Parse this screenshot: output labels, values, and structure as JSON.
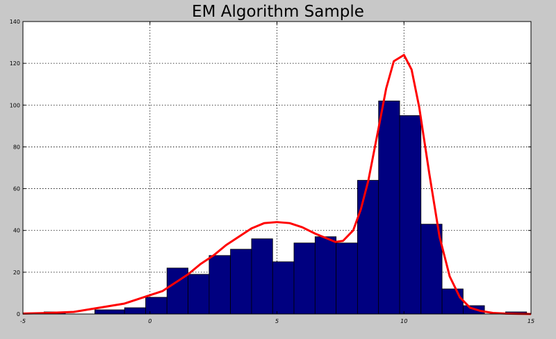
{
  "chart_data": {
    "type": "bar",
    "title": "EM Algorithm Sample",
    "xlabel": "",
    "ylabel": "",
    "xlim": [
      -5,
      15
    ],
    "ylim": [
      0,
      140
    ],
    "grid": true,
    "x_ticks": [
      "-5",
      "0",
      "5",
      "10",
      "15"
    ],
    "y_ticks": [
      "0",
      "20",
      "40",
      "60",
      "80",
      "100",
      "120",
      "140"
    ],
    "bar_color": "#000080",
    "curve_color": "#ff0000",
    "histogram": {
      "bin_width": 0.83,
      "bins": [
        {
          "x0": -4.17,
          "x1": -3.33,
          "count": 1
        },
        {
          "x0": -2.17,
          "x1": -1.0,
          "count": 2
        },
        {
          "x0": -1.0,
          "x1": -0.17,
          "count": 3
        },
        {
          "x0": -0.17,
          "x1": 0.67,
          "count": 8
        },
        {
          "x0": 0.67,
          "x1": 1.5,
          "count": 22
        },
        {
          "x0": 1.5,
          "x1": 2.33,
          "count": 19
        },
        {
          "x0": 2.33,
          "x1": 3.17,
          "count": 28
        },
        {
          "x0": 3.17,
          "x1": 4.0,
          "count": 31
        },
        {
          "x0": 4.0,
          "x1": 4.83,
          "count": 36
        },
        {
          "x0": 4.83,
          "x1": 5.67,
          "count": 25
        },
        {
          "x0": 5.67,
          "x1": 6.5,
          "count": 34
        },
        {
          "x0": 6.5,
          "x1": 7.33,
          "count": 37
        },
        {
          "x0": 7.33,
          "x1": 8.17,
          "count": 34
        },
        {
          "x0": 8.17,
          "x1": 9.0,
          "count": 64
        },
        {
          "x0": 9.0,
          "x1": 9.83,
          "count": 102
        },
        {
          "x0": 9.83,
          "x1": 10.67,
          "count": 95
        },
        {
          "x0": 10.67,
          "x1": 11.5,
          "count": 43
        },
        {
          "x0": 11.5,
          "x1": 12.33,
          "count": 12
        },
        {
          "x0": 12.33,
          "x1": 13.17,
          "count": 4
        },
        {
          "x0": 14.0,
          "x1": 14.83,
          "count": 1
        }
      ]
    },
    "fit_curve": {
      "name": "",
      "x": [
        -5,
        -4,
        -3,
        -2,
        -1,
        0,
        0.5,
        1,
        1.5,
        2,
        2.5,
        3,
        3.5,
        4,
        4.5,
        5,
        5.5,
        6,
        6.5,
        7,
        7.3,
        7.6,
        8,
        8.3,
        8.6,
        9,
        9.3,
        9.6,
        10,
        10.3,
        10.6,
        11,
        11.4,
        11.8,
        12.2,
        12.6,
        13,
        13.5,
        14,
        14.5,
        15
      ],
      "y": [
        0.2,
        0.5,
        1,
        3,
        5,
        9,
        11,
        15,
        19,
        24,
        28,
        33,
        37,
        41,
        43.5,
        44,
        43.5,
        41.5,
        38.5,
        36,
        34.5,
        35,
        40,
        50,
        64,
        89,
        108,
        121,
        124,
        117,
        99,
        67,
        37,
        18,
        8,
        3,
        1.5,
        0.5,
        0.2,
        0.1,
        0
      ]
    }
  }
}
